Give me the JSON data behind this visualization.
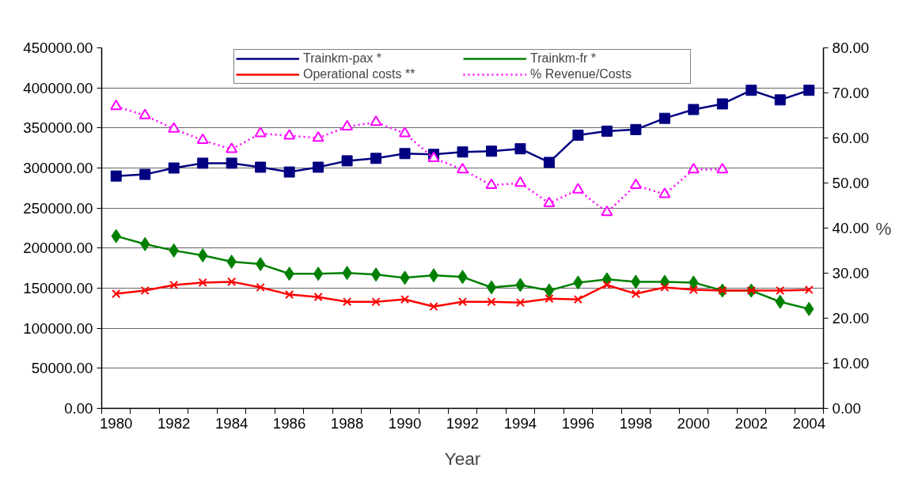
{
  "chart_data": {
    "type": "line",
    "xlabel": "Year",
    "y2label": "%",
    "categories": [
      "1980",
      null,
      "1982",
      null,
      "1984",
      null,
      "1986",
      null,
      "1988",
      null,
      "1990",
      null,
      "1992",
      null,
      "1994",
      null,
      "1996",
      null,
      "1998",
      null,
      "2000",
      null,
      "2002",
      null,
      "2004"
    ],
    "series": [
      {
        "name": "Trainkm-pax *",
        "color": "#000080",
        "marker": "square",
        "line_style": "solid",
        "values": [
          290000,
          292000,
          300000,
          306000,
          306000,
          301000,
          295000,
          301000,
          309000,
          312000,
          318000,
          317000,
          320000,
          321000,
          324000,
          307000,
          341000,
          346000,
          348000,
          362000,
          373000,
          380000,
          397000,
          385000,
          397000
        ]
      },
      {
        "name": "Trainkm-fr *",
        "color": "#008000",
        "marker": "diamond",
        "line_style": "solid",
        "values": [
          215000,
          205000,
          197000,
          191000,
          183000,
          180000,
          168000,
          168000,
          169000,
          167000,
          163000,
          166000,
          164000,
          151000,
          154000,
          147000,
          157000,
          161000,
          158000,
          158000,
          157000,
          147000,
          147000,
          133000,
          124000
        ]
      },
      {
        "name": "Operational costs **",
        "color": "#ff0000",
        "marker": "cross",
        "line_style": "solid",
        "values": [
          143000,
          147000,
          154000,
          157000,
          158000,
          151000,
          142000,
          139000,
          133000,
          133000,
          136000,
          127000,
          133000,
          133000,
          132000,
          137000,
          136000,
          154000,
          143000,
          151000,
          148000,
          147000,
          147000,
          147000,
          148000
        ]
      },
      {
        "name": "% Revenue/Costs",
        "color": "#ff00ff",
        "marker": "triangle",
        "line_style": "dotted",
        "axis": "y2",
        "values": [
          67,
          65,
          62,
          59.5,
          57.5,
          61,
          60.5,
          60,
          62.5,
          63.5,
          61,
          55.5,
          53,
          49.5,
          50,
          45.5,
          48.5,
          43.5,
          49.5,
          47.5,
          53,
          53,
          null,
          null,
          null
        ]
      }
    ],
    "ylim": [
      0,
      450000
    ],
    "yticks": [
      {
        "value": 0,
        "label": "0.00"
      },
      {
        "value": 50000,
        "label": "50000.00"
      },
      {
        "value": 100000,
        "label": "100000.00"
      },
      {
        "value": 150000,
        "label": "150000.00"
      },
      {
        "value": 200000,
        "label": "200000.00"
      },
      {
        "value": 250000,
        "label": "250000.00"
      },
      {
        "value": 300000,
        "label": "300000.00"
      },
      {
        "value": 350000,
        "label": "350000.00"
      },
      {
        "value": 400000,
        "label": "400000.00"
      },
      {
        "value": 450000,
        "label": "450000.00"
      }
    ],
    "y2lim": [
      0,
      80
    ],
    "y2ticks": [
      {
        "value": 0,
        "label": "0.00"
      },
      {
        "value": 10,
        "label": "10.00"
      },
      {
        "value": 20,
        "label": "20.00"
      },
      {
        "value": 30,
        "label": "30.00"
      },
      {
        "value": 40,
        "label": "40.00"
      },
      {
        "value": 50,
        "label": "50.00"
      },
      {
        "value": 60,
        "label": "60.00"
      },
      {
        "value": 70,
        "label": "70.00"
      },
      {
        "value": 80,
        "label": "80.00"
      }
    ],
    "grid": "y",
    "legend": "top"
  }
}
